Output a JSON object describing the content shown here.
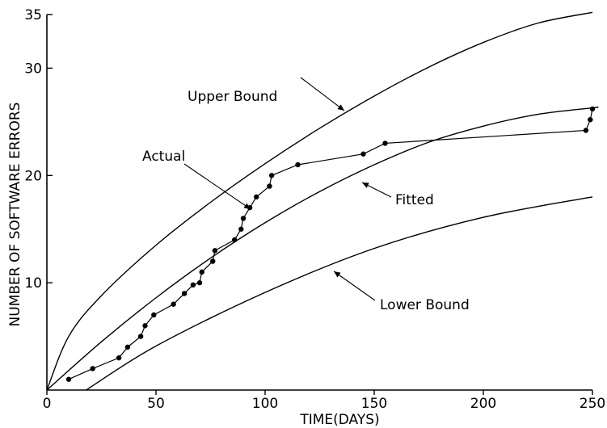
{
  "chart_data": {
    "type": "line",
    "xlabel": "TIME(DAYS)",
    "ylabel": "NUMBER OF SOFTWARE ERRORS",
    "xlim": [
      0,
      250
    ],
    "ylim": [
      0,
      35
    ],
    "grid": false,
    "x_ticks": [
      0,
      50,
      100,
      150,
      200,
      250
    ],
    "y_ticks": [
      10,
      20,
      30,
      35
    ],
    "series": [
      {
        "name": "Upper Bound",
        "style": "smooth",
        "x": [
          0,
          10,
          25,
          50,
          75,
          100,
          125,
          150,
          175,
          200,
          225,
          250
        ],
        "y": [
          0,
          5.0,
          8.8,
          13.5,
          17.5,
          21.1,
          24.4,
          27.4,
          30.1,
          32.4,
          34.2,
          35.2
        ]
      },
      {
        "name": "Fitted",
        "style": "smooth",
        "x": [
          0,
          25,
          50,
          75,
          100,
          125,
          150,
          175,
          200,
          225,
          250,
          252
        ],
        "y": [
          0,
          4.5,
          8.6,
          12.3,
          15.6,
          18.5,
          21.0,
          23.1,
          24.6,
          25.7,
          26.3,
          26.35
        ]
      },
      {
        "name": "Lower Bound",
        "style": "smooth",
        "x": [
          18,
          50,
          100,
          150,
          200,
          250
        ],
        "y": [
          0,
          4.1,
          9.1,
          13.2,
          16.1,
          18.0
        ]
      },
      {
        "name": "Actual",
        "style": "markers",
        "x": [
          10,
          21,
          33,
          37,
          43,
          45,
          49,
          58,
          63,
          67,
          70,
          71,
          76,
          77,
          86,
          89,
          90,
          93,
          96,
          102,
          103,
          115,
          145,
          155,
          247,
          249,
          250
        ],
        "y": [
          1,
          2,
          3,
          4,
          5,
          6,
          7,
          8,
          9,
          9.8,
          10,
          11,
          12,
          13,
          14,
          15,
          16,
          17,
          18,
          19,
          20,
          21,
          22,
          23,
          24.2,
          25.2,
          26.2
        ]
      }
    ],
    "annotations": [
      {
        "text": "Upper Bound",
        "series": "Upper Bound"
      },
      {
        "text": "Actual",
        "series": "Actual"
      },
      {
        "text": "Fitted",
        "series": "Fitted"
      },
      {
        "text": "Lower Bound",
        "series": "Lower Bound"
      }
    ]
  }
}
